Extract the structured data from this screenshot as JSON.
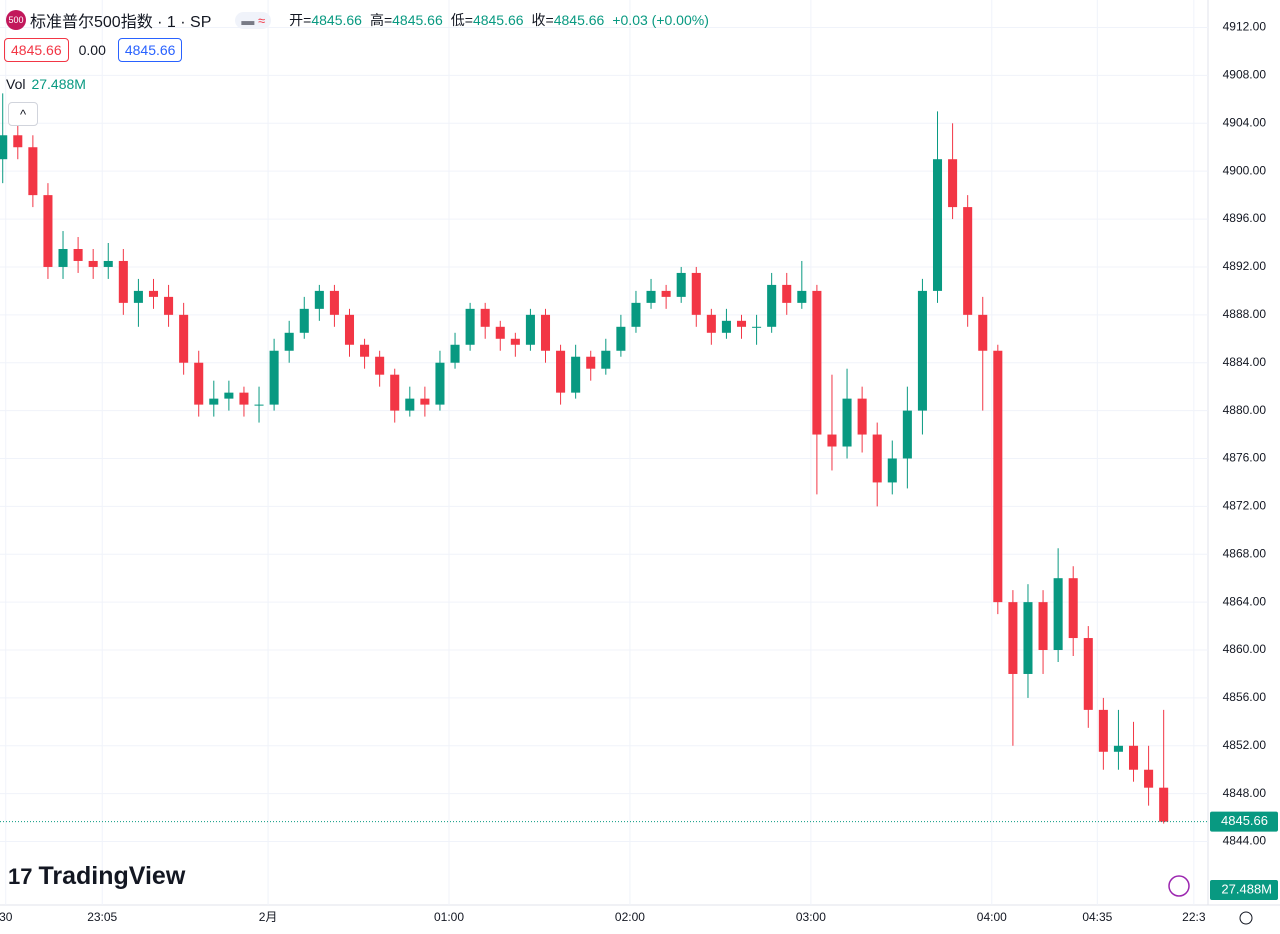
{
  "chart_data": {
    "type": "candlestick",
    "icon": "500",
    "title": "标准普尔500指数 · 1 · SP",
    "legend": {
      "open_label": "开=",
      "open": "4845.66",
      "high_label": "高=",
      "high": "4845.66",
      "low_label": "低=",
      "low": "4845.66",
      "close_label": "收=",
      "close": "4845.66",
      "change": "+0.03 (+0.00%)"
    },
    "sell_box": "4845.66",
    "spread": "0.00",
    "buy_box": "4845.66",
    "volume_label": "Vol",
    "volume": "27.488M",
    "brand": "TradingView",
    "up_color": "#089981",
    "down_color": "#f23645",
    "x": [
      -88,
      -83,
      -78,
      -73,
      -68,
      -63,
      -58,
      -53,
      -48,
      -43,
      -38,
      -33,
      -28,
      -23,
      -18,
      -13,
      -8,
      -3,
      2,
      7,
      12,
      17,
      22,
      27,
      32,
      37,
      42,
      47,
      52,
      57,
      62,
      67,
      72,
      77,
      82,
      87,
      92,
      97,
      102,
      107,
      112,
      117,
      122,
      127,
      132,
      137,
      142,
      147,
      152,
      157,
      162,
      167,
      172,
      177,
      182,
      187,
      192,
      197,
      202,
      207,
      212,
      217,
      222,
      227,
      232,
      237,
      242,
      247,
      252,
      257,
      262,
      267,
      272,
      277,
      282,
      287,
      292,
      297
    ],
    "open": [
      4901,
      4903,
      4902,
      4898,
      4892,
      4893.5,
      4892.5,
      4892,
      4892.5,
      4889,
      4890,
      4889.5,
      4888,
      4884,
      4880.5,
      4881,
      4881.5,
      4880.5,
      4880.5,
      4885,
      4886.5,
      4888.5,
      4890,
      4888,
      4885.5,
      4884.5,
      4883,
      4880,
      4881,
      4880.5,
      4884,
      4885.5,
      4888.5,
      4887,
      4886,
      4885.5,
      4888,
      4885,
      4881.5,
      4884.5,
      4883.5,
      4885,
      4887,
      4889,
      4890,
      4889.5,
      4891.5,
      4888,
      4886.5,
      4887.5,
      4887,
      4887,
      4890.5,
      4889,
      4890,
      4878,
      4877,
      4881,
      4878,
      4874,
      4876,
      4880,
      4890,
      4901,
      4897,
      4888,
      4885,
      4864,
      4858,
      4864,
      4860,
      4866,
      4861,
      4855,
      4851.5,
      4852,
      4850,
      4848.5
    ],
    "high": [
      4906.5,
      4904,
      4903,
      4899,
      4895,
      4894.5,
      4893.5,
      4894,
      4893.5,
      4891,
      4891,
      4890.5,
      4889,
      4885,
      4882.5,
      4882.5,
      4882,
      4882,
      4886,
      4887.5,
      4889.5,
      4890.5,
      4890.5,
      4888.5,
      4886,
      4885,
      4883.5,
      4882,
      4882,
      4885,
      4886.5,
      4889,
      4889,
      4887.5,
      4886.5,
      4888.5,
      4888.5,
      4885.5,
      4885.5,
      4885,
      4886,
      4888,
      4890,
      4891,
      4890.5,
      4892,
      4892,
      4888.5,
      4888.5,
      4888,
      4888,
      4891.5,
      4891.5,
      4892.5,
      4890.5,
      4883,
      4883.5,
      4882,
      4879,
      4877.5,
      4882,
      4891,
      4905,
      4904,
      4898,
      4889.5,
      4885.5,
      4865,
      4865.5,
      4865,
      4868.5,
      4867,
      4862,
      4856,
      4855,
      4854,
      4852,
      4855
    ],
    "low": [
      4899,
      4901,
      4897,
      4891,
      4891,
      4891.5,
      4891,
      4891,
      4888,
      4887,
      4888.5,
      4887,
      4883,
      4879.5,
      4879.5,
      4880,
      4879.5,
      4879,
      4880,
      4884,
      4886,
      4887.5,
      4887,
      4884.5,
      4883.5,
      4882,
      4879,
      4879.5,
      4879.5,
      4880,
      4883.5,
      4885,
      4886,
      4885,
      4884.5,
      4885,
      4884,
      4880.5,
      4881,
      4882.5,
      4883,
      4884.5,
      4886.5,
      4888.5,
      4888.5,
      4889,
      4887,
      4885.5,
      4886,
      4886,
      4885.5,
      4886.5,
      4888,
      4888.5,
      4873,
      4875,
      4876,
      4876.5,
      4872,
      4873,
      4873.5,
      4878,
      4889,
      4896,
      4887,
      4880,
      4863,
      4852,
      4856,
      4858,
      4859,
      4859.5,
      4853.5,
      4850,
      4850,
      4849,
      4847,
      4845.5
    ],
    "close": [
      4903,
      4902,
      4898,
      4892,
      4893.5,
      4892.5,
      4892,
      4892.5,
      4889,
      4890,
      4889.5,
      4888,
      4884,
      4880.5,
      4881,
      4881.5,
      4880.5,
      4880.5,
      4885,
      4886.5,
      4888.5,
      4890,
      4888,
      4885.5,
      4884.5,
      4883,
      4880,
      4881,
      4880.5,
      4884,
      4885.5,
      4888.5,
      4887,
      4886,
      4885.5,
      4888,
      4885,
      4881.5,
      4884.5,
      4883.5,
      4885,
      4887,
      4889,
      4890,
      4889.5,
      4891.5,
      4888,
      4886.5,
      4887.5,
      4887,
      4887,
      4890.5,
      4889,
      4890,
      4878,
      4877,
      4881,
      4878,
      4874,
      4876,
      4880,
      4890,
      4901,
      4897,
      4888,
      4885,
      4864,
      4858,
      4864,
      4860,
      4866,
      4861,
      4855,
      4851.5,
      4852,
      4850,
      4848.5,
      4845.66
    ],
    "last_price": 4845.66,
    "xlim": [
      -88.9,
      311.7
    ],
    "xticks": [
      {
        "value": -87,
        "label": "30"
      },
      {
        "value": -55,
        "label": "23:05"
      },
      {
        "value": 0,
        "label": "2月"
      },
      {
        "value": 60,
        "label": "01:00"
      },
      {
        "value": 120,
        "label": "02:00"
      },
      {
        "value": 180,
        "label": "03:00"
      },
      {
        "value": 240,
        "label": "04:00"
      },
      {
        "value": 275,
        "label": "04:35"
      },
      {
        "value": 307,
        "label": "22:3"
      }
    ],
    "ylim": [
      4838.7,
      4914.3
    ],
    "yticks": [
      {
        "value": 4844,
        "label": "4844.00"
      },
      {
        "value": 4848,
        "label": "4848.00"
      },
      {
        "value": 4852,
        "label": "4852.00"
      },
      {
        "value": 4856,
        "label": "4856.00"
      },
      {
        "value": 4860,
        "label": "4860.00"
      },
      {
        "value": 4864,
        "label": "4864.00"
      },
      {
        "value": 4868,
        "label": "4868.00"
      },
      {
        "value": 4872,
        "label": "4872.00"
      },
      {
        "value": 4876,
        "label": "4876.00"
      },
      {
        "value": 4880,
        "label": "4880.00"
      },
      {
        "value": 4884,
        "label": "4884.00"
      },
      {
        "value": 4888,
        "label": "4888.00"
      },
      {
        "value": 4892,
        "label": "4892.00"
      },
      {
        "value": 4896,
        "label": "4896.00"
      },
      {
        "value": 4900,
        "label": "4900.00"
      },
      {
        "value": 4904,
        "label": "4904.00"
      },
      {
        "value": 4908,
        "label": "4908.00"
      },
      {
        "value": 4912,
        "label": "4912.00"
      }
    ],
    "grid": true
  }
}
